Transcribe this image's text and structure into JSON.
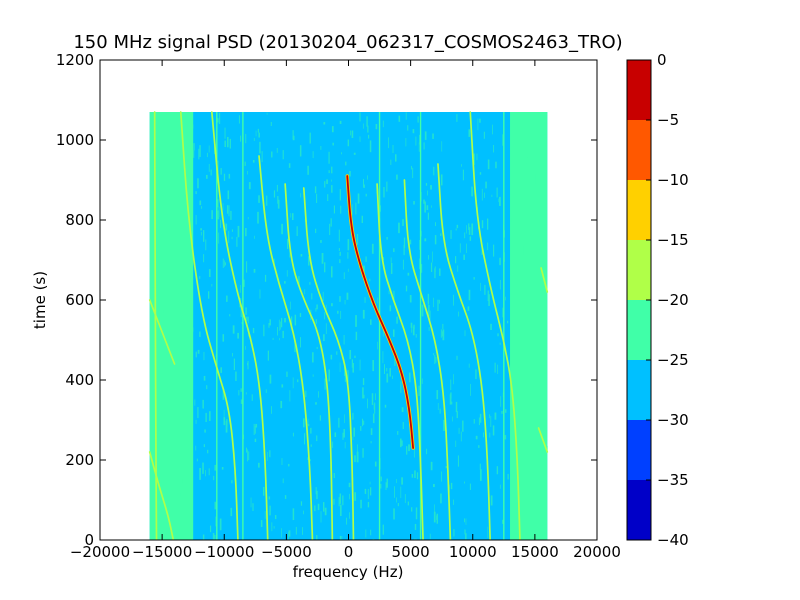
{
  "chart_data": {
    "type": "heatmap",
    "title": "150 MHz signal PSD (20130204_062317_COSMOS2463_TRO)",
    "xlabel": "frequency (Hz)",
    "ylabel": "time (s)",
    "xlim": [
      -20000,
      20000
    ],
    "ylim": [
      0,
      1200
    ],
    "x_ticks": [
      -20000,
      -15000,
      -10000,
      -5000,
      0,
      5000,
      10000,
      15000,
      20000
    ],
    "y_ticks": [
      0,
      200,
      400,
      600,
      800,
      1000,
      1200
    ],
    "data_extent": {
      "x": [
        -16000,
        16000
      ],
      "y": [
        0,
        1070
      ]
    },
    "colorbar": {
      "range": [
        -40,
        0
      ],
      "ticks": [
        0,
        -5,
        -10,
        -15,
        -20,
        -25,
        -30,
        -35,
        -40
      ],
      "levels": [
        {
          "from": -40,
          "to": -35,
          "color": "#0000c8"
        },
        {
          "from": -35,
          "to": -30,
          "color": "#0040ff"
        },
        {
          "from": -30,
          "to": -25,
          "color": "#00c0ff"
        },
        {
          "from": -25,
          "to": -20,
          "color": "#40ffa8"
        },
        {
          "from": -20,
          "to": -15,
          "color": "#b0ff48"
        },
        {
          "from": -15,
          "to": -10,
          "color": "#ffd000"
        },
        {
          "from": -10,
          "to": -5,
          "color": "#ff5800"
        },
        {
          "from": -5,
          "to": 0,
          "color": "#c80000"
        }
      ]
    },
    "background_level": -27.5,
    "edge_bands": [
      {
        "x": [
          -16000,
          -12500
        ],
        "level": -22.5
      },
      {
        "x": [
          13000,
          16000
        ],
        "level": -22.5
      }
    ],
    "traces": [
      {
        "points": [
          [
            -100,
            910
          ],
          [
            200,
            780
          ],
          [
            900,
            690
          ],
          [
            2000,
            590
          ],
          [
            3300,
            500
          ],
          [
            4300,
            420
          ],
          [
            4900,
            330
          ],
          [
            5200,
            230
          ]
        ],
        "level": -2.5
      },
      {
        "points": [
          [
            -13500,
            1070
          ],
          [
            -12900,
            800
          ],
          [
            -11800,
            560
          ],
          [
            -10600,
            430
          ],
          [
            -9600,
            330
          ],
          [
            -9100,
            180
          ],
          [
            -8900,
            0
          ]
        ],
        "level": -17.5
      },
      {
        "points": [
          [
            -11000,
            1070
          ],
          [
            -10200,
            800
          ],
          [
            -9000,
            620
          ],
          [
            -7800,
            500
          ],
          [
            -7100,
            380
          ],
          [
            -6700,
            200
          ],
          [
            -6500,
            0
          ]
        ],
        "level": -17.5
      },
      {
        "points": [
          [
            -7200,
            960
          ],
          [
            -6600,
            760
          ],
          [
            -5600,
            640
          ],
          [
            -4400,
            520
          ],
          [
            -3600,
            380
          ],
          [
            -3100,
            180
          ],
          [
            -2900,
            0
          ]
        ],
        "level": -17.5
      },
      {
        "points": [
          [
            -5100,
            890
          ],
          [
            -4700,
            700
          ],
          [
            -3600,
            600
          ],
          [
            -2400,
            520
          ],
          [
            -1700,
            400
          ],
          [
            -1400,
            220
          ],
          [
            -1300,
            0
          ]
        ],
        "level": -17.5
      },
      {
        "points": [
          [
            -3600,
            880
          ],
          [
            -3200,
            700
          ],
          [
            -2100,
            590
          ],
          [
            -800,
            500
          ],
          [
            0,
            400
          ],
          [
            300,
            200
          ],
          [
            400,
            0
          ]
        ],
        "level": -17.5
      },
      {
        "points": [
          [
            2300,
            890
          ],
          [
            2600,
            700
          ],
          [
            3600,
            600
          ],
          [
            4800,
            500
          ],
          [
            5500,
            380
          ],
          [
            5800,
            200
          ],
          [
            6000,
            0
          ]
        ],
        "level": -17.5
      },
      {
        "points": [
          [
            4500,
            900
          ],
          [
            4800,
            720
          ],
          [
            5900,
            610
          ],
          [
            7000,
            500
          ],
          [
            7700,
            360
          ],
          [
            8000,
            180
          ],
          [
            8200,
            0
          ]
        ],
        "level": -17.5
      },
      {
        "points": [
          [
            7200,
            940
          ],
          [
            7600,
            740
          ],
          [
            8800,
            620
          ],
          [
            10000,
            520
          ],
          [
            10800,
            380
          ],
          [
            11200,
            200
          ],
          [
            11400,
            0
          ]
        ],
        "level": -17.5
      },
      {
        "points": [
          [
            9800,
            1070
          ],
          [
            10300,
            800
          ],
          [
            11500,
            620
          ],
          [
            12500,
            500
          ],
          [
            13200,
            380
          ],
          [
            13600,
            200
          ],
          [
            13800,
            0
          ]
        ],
        "level": -17.5
      },
      {
        "points": [
          [
            -15600,
            1070
          ],
          [
            -15550,
            600
          ],
          [
            -15500,
            200
          ],
          [
            -15450,
            0
          ]
        ],
        "level": -17.5
      },
      {
        "points": [
          [
            -16000,
            220
          ],
          [
            -15300,
            140
          ],
          [
            -14500,
            60
          ],
          [
            -14100,
            0
          ]
        ],
        "level": -17.5
      },
      {
        "points": [
          [
            -16000,
            600
          ],
          [
            -15000,
            520
          ],
          [
            -14000,
            440
          ]
        ],
        "level": -17.5
      },
      {
        "points": [
          [
            15500,
            680
          ],
          [
            16000,
            620
          ]
        ],
        "level": -17.5
      },
      {
        "points": [
          [
            15300,
            280
          ],
          [
            16000,
            220
          ]
        ],
        "level": -17.5
      }
    ],
    "vertical_lines": [
      {
        "x": -10600,
        "y": [
          0,
          1070
        ],
        "level": -22.5
      },
      {
        "x": -8500,
        "y": [
          0,
          1070
        ],
        "level": -22.5
      },
      {
        "x": 2500,
        "y": [
          0,
          1070
        ],
        "level": -22.5
      },
      {
        "x": 5800,
        "y": [
          0,
          1070
        ],
        "level": -22.5
      },
      {
        "x": 12500,
        "y": [
          0,
          1070
        ],
        "level": -22.5
      }
    ]
  }
}
